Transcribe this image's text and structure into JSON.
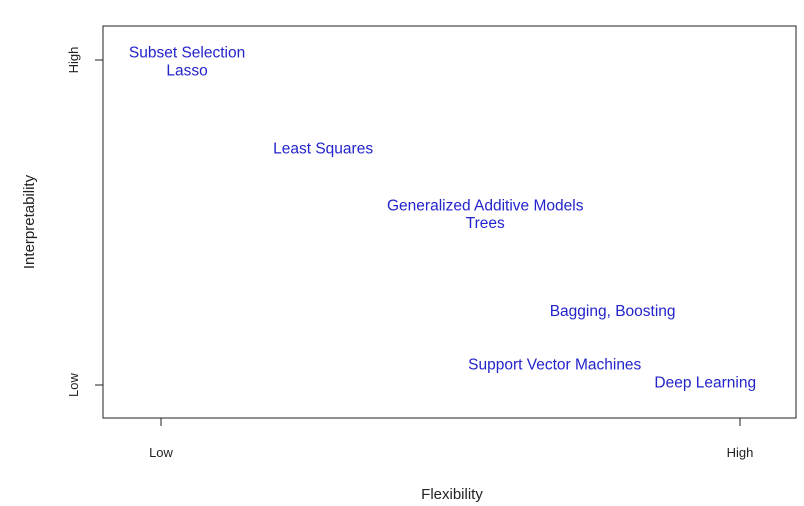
{
  "chart_data": {
    "type": "scatter",
    "title": "",
    "xlabel": "Flexibility",
    "ylabel": "Interpretability",
    "xlim": [
      0,
      1
    ],
    "ylim": [
      0,
      1
    ],
    "grid": false,
    "legend": "none",
    "label_color": "#2323cc",
    "x_ticks": [
      {
        "value": 0,
        "label": "Low"
      },
      {
        "value": 1,
        "label": "High"
      }
    ],
    "y_ticks": [
      {
        "value": 0,
        "label": "Low"
      },
      {
        "value": 1,
        "label": "High"
      }
    ],
    "points": [
      {
        "label": "Subset Selection",
        "x": 0.045,
        "y": 1.02
      },
      {
        "label": "Lasso",
        "x": 0.045,
        "y": 0.965
      },
      {
        "label": "Least Squares",
        "x": 0.28,
        "y": 0.725
      },
      {
        "label": "Generalized Additive Models",
        "x": 0.56,
        "y": 0.55
      },
      {
        "label": "Trees",
        "x": 0.56,
        "y": 0.495
      },
      {
        "label": "Bagging, Boosting",
        "x": 0.78,
        "y": 0.225
      },
      {
        "label": "Support Vector Machines",
        "x": 0.68,
        "y": 0.06
      },
      {
        "label": "Deep Learning",
        "x": 0.94,
        "y": 0.005
      }
    ]
  }
}
